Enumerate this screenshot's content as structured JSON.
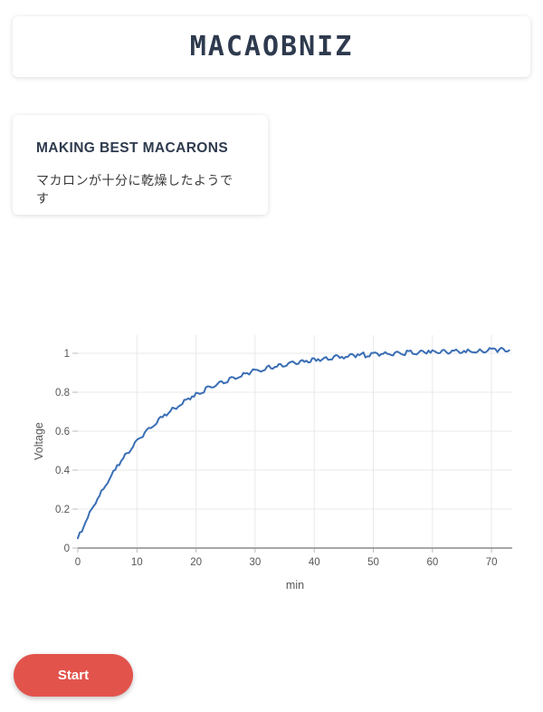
{
  "app": {
    "title": "MACAOBNIZ"
  },
  "status_card": {
    "heading": "MAKING BEST MACARONS",
    "message": "マカロンが十分に乾燥したようです"
  },
  "controls": {
    "start_label": "Start"
  },
  "colors": {
    "title_color": "#2e3a4e",
    "accent_red": "#e2534c",
    "line_blue": "#3a6eb5",
    "grid_gray": "#e9e9e9",
    "axis_line_gray": "#8c8c8c",
    "tick_mark_gray": "#bbbbbb",
    "axis_text_gray": "#565656"
  },
  "chart_data": {
    "type": "line",
    "title": "",
    "xlabel": "min",
    "ylabel": "Voltage",
    "xlim": [
      0,
      73.5
    ],
    "ylim": [
      0,
      1.093
    ],
    "x_ticks": [
      0,
      10,
      20,
      30,
      40,
      50,
      60,
      70
    ],
    "y_ticks": [
      0,
      0.2,
      0.4,
      0.6,
      0.8,
      1
    ],
    "grid": true,
    "legend": false,
    "line_color": "#3a6eb5",
    "noise_amplitude": 0.011,
    "series": [
      {
        "name": "Voltage",
        "x_start": 0,
        "x_step": 1,
        "values": [
          0.05,
          0.109,
          0.186,
          0.228,
          0.296,
          0.331,
          0.396,
          0.425,
          0.483,
          0.504,
          0.556,
          0.57,
          0.617,
          0.63,
          0.674,
          0.68,
          0.721,
          0.726,
          0.761,
          0.763,
          0.797,
          0.796,
          0.83,
          0.826,
          0.855,
          0.849,
          0.878,
          0.872,
          0.899,
          0.891,
          0.916,
          0.906,
          0.931,
          0.921,
          0.944,
          0.933,
          0.955,
          0.944,
          0.965,
          0.953,
          0.974,
          0.96,
          0.981,
          0.968,
          0.988,
          0.973,
          0.993,
          0.979,
          0.998,
          0.984,
          1.002,
          0.987,
          1.006,
          0.991,
          1.009,
          0.993,
          1.011,
          0.996,
          1.014,
          0.998,
          1.016,
          1.0,
          1.017,
          1.002,
          1.019,
          1.003,
          1.02,
          1.005,
          1.021,
          1.005,
          1.023,
          1.006,
          1.023,
          1.015
        ]
      }
    ]
  }
}
